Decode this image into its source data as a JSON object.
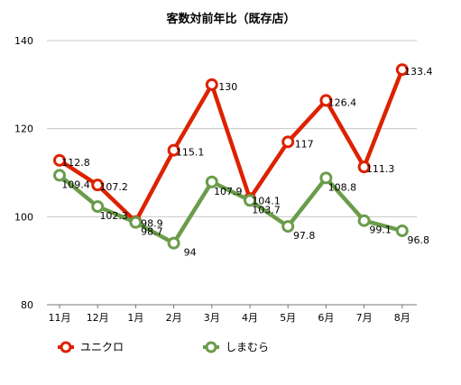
{
  "chart_data": {
    "type": "line",
    "title": "客数対前年比（既存店）",
    "xlabel": "",
    "ylabel": "",
    "categories": [
      "11月",
      "12月",
      "1月",
      "2月",
      "3月",
      "4月",
      "5月",
      "6月",
      "7月",
      "8月"
    ],
    "ylim": [
      80,
      140
    ],
    "yticks": [
      80,
      100,
      120,
      140
    ],
    "grid": true,
    "legend_position": "bottom",
    "series": [
      {
        "name": "ユニクロ",
        "color": "#dd2200",
        "values": [
          112.8,
          107.2,
          98.9,
          115.1,
          130,
          104.1,
          117,
          126.4,
          111.3,
          133.4
        ],
        "labels": [
          "112.8",
          "107.2",
          "98.9",
          "115.1",
          "130",
          "104.1",
          "117",
          "126.4",
          "111.3",
          "133.4"
        ]
      },
      {
        "name": "しまむら",
        "color": "#6a9c4a",
        "values": [
          109.4,
          102.3,
          98.7,
          94,
          107.9,
          103.7,
          97.8,
          108.8,
          99.1,
          96.8
        ],
        "labels": [
          "109.4",
          "102.3",
          "98.7",
          "94",
          "107.9",
          "103.7",
          "97.8",
          "108.8",
          "99.1",
          "96.8"
        ]
      }
    ]
  }
}
